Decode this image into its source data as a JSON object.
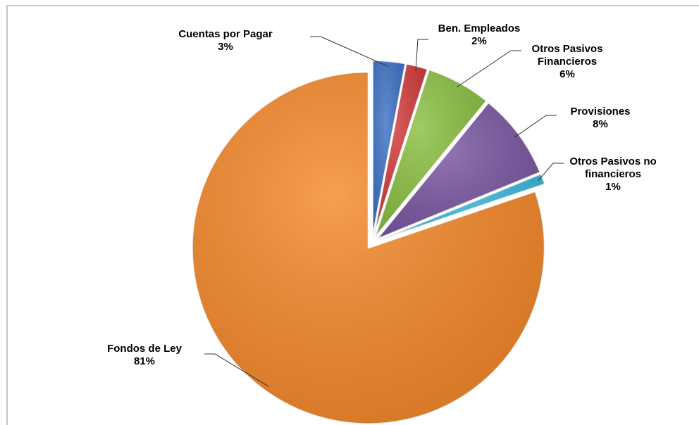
{
  "chart_data": {
    "type": "pie",
    "categories": [
      "Cuentas por Pagar",
      "Ben. Empleados",
      "Otros Pasivos Financieros",
      "Provisiones",
      "Otros Pasivos no financieros",
      "Fondos de Ley"
    ],
    "values": [
      3,
      2,
      6,
      8,
      1,
      81
    ],
    "value_labels": [
      "3%",
      "2%",
      "6%",
      "8%",
      "1%",
      "81%"
    ],
    "colors": [
      "#3d72c6",
      "#d23b3b",
      "#8cc043",
      "#7b58a3",
      "#3cb8db",
      "#f5892c"
    ]
  }
}
